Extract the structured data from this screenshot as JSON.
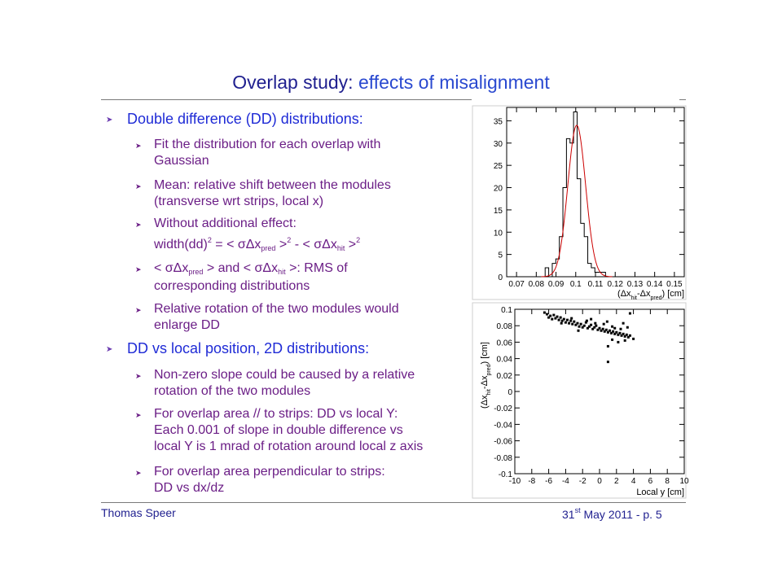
{
  "slide": {
    "title_part1": "Overlap study: ",
    "title_part2": "effects of misalignment",
    "footer_author": "Thomas Speer",
    "footer_date_day": "31",
    "footer_date_sup": "st",
    "footer_date_rest": " May 2011 - p. 5"
  },
  "bullets": {
    "b1": "Double difference (DD) distributions:",
    "b1_1_l1": "Fit the distribution for each overlap with",
    "b1_1_l2": "Gaussian",
    "b1_2_l1": "Mean: relative shift between the modules",
    "b1_2_l2": "(transverse wrt strips, local x)",
    "b1_3_l1": "Without additional effect:",
    "b1_3_l2_a": "width(dd)",
    "b1_3_l2_sup1": "2",
    "b1_3_l2_b": " = < σΔx",
    "b1_3_l2_sub1": "pred",
    "b1_3_l2_c": " >",
    "b1_3_l2_sup2": "2",
    "b1_3_l2_d": " - < σΔx",
    "b1_3_l2_sub2": "hit",
    "b1_3_l2_e": " >",
    "b1_3_l2_sup3": "2",
    "b1_4_a": "< σΔx",
    "b1_4_sub1": "pred",
    "b1_4_b": " > and < σΔx",
    "b1_4_sub2": "hit",
    "b1_4_c": " >: RMS of",
    "b1_4_l2": "corresponding distributions",
    "b1_5_l1": "Relative rotation of the two modules would",
    "b1_5_l2": "enlarge DD",
    "b2": "DD vs local position, 2D distributions:",
    "b2_1_l1": "Non-zero slope could be caused by a relative",
    "b2_1_l2": "rotation of the two modules",
    "b2_2_l1": "For overlap area // to strips:  DD vs local Y:",
    "b2_2_l2": "Each 0.001 of slope in double difference vs",
    "b2_2_l3": "local Y is 1 mrad of rotation around local z axis",
    "b2_3_l1": "For overlap area perpendicular to strips:",
    "b2_3_l2": "DD vs dx/dz"
  },
  "chart_data": [
    {
      "type": "bar",
      "subtype": "histogram with gaussian fit",
      "xlabel": "(Δx_hit-Δx_pred) [cm]",
      "xlim": [
        0.065,
        0.155
      ],
      "ylim": [
        0,
        38
      ],
      "x_tick_labels": [
        "0.07",
        "0.08",
        "0.09",
        "0.1",
        "0.11",
        "0.12",
        "0.13",
        "0.14",
        "0.15"
      ],
      "y_tick_labels": [
        "0",
        "5",
        "10",
        "15",
        "20",
        "25",
        "30",
        "35"
      ],
      "bin_width": 0.0018,
      "bin_starts": [
        0.0845,
        0.0863,
        0.0881,
        0.0899,
        0.0917,
        0.0935,
        0.0953,
        0.0971,
        0.0989,
        0.1007,
        0.1025,
        0.1043,
        0.1061,
        0.1079,
        0.1097,
        0.1115,
        0.1133
      ],
      "counts": [
        2,
        0,
        3,
        4,
        9,
        20,
        31,
        30,
        37,
        22,
        12,
        9,
        3,
        2,
        1,
        1,
        1
      ],
      "fit": {
        "mean": 0.1005,
        "sigma": 0.0045,
        "amplitude": 34
      },
      "colors": {
        "histogram": "#000000",
        "fit": "#cc0000"
      }
    },
    {
      "type": "scatter",
      "xlabel": "Local y [cm]",
      "ylabel": "(Δx_hit-Δx_pred) [cm]",
      "xlim": [
        -10,
        10
      ],
      "ylim": [
        -0.1,
        0.1
      ],
      "x_tick_labels": [
        "-10",
        "-8",
        "-6",
        "-4",
        "-2",
        "0",
        "2",
        "4",
        "6",
        "8",
        "10"
      ],
      "y_tick_labels": [
        "-0.1",
        "-0.08",
        "-0.06",
        "-0.04",
        "-0.02",
        "0",
        "0.02",
        "0.04",
        "0.06",
        "0.08",
        "0.1"
      ],
      "points": [
        [
          -6.2,
          0.094
        ],
        [
          -6.0,
          0.09
        ],
        [
          -5.8,
          0.092
        ],
        [
          -5.6,
          0.088
        ],
        [
          -5.4,
          0.093
        ],
        [
          -5.2,
          0.089
        ],
        [
          -5.0,
          0.091
        ],
        [
          -4.8,
          0.087
        ],
        [
          -4.6,
          0.09
        ],
        [
          -4.4,
          0.086
        ],
        [
          -4.2,
          0.088
        ],
        [
          -4.0,
          0.084
        ],
        [
          -3.8,
          0.087
        ],
        [
          -3.6,
          0.083
        ],
        [
          -3.4,
          0.086
        ],
        [
          -3.2,
          0.082
        ],
        [
          -3.0,
          0.085
        ],
        [
          -2.8,
          0.081
        ],
        [
          -2.6,
          0.083
        ],
        [
          -2.4,
          0.079
        ],
        [
          -2.2,
          0.082
        ],
        [
          -2.0,
          0.078
        ],
        [
          -1.8,
          0.08
        ],
        [
          -1.6,
          0.084
        ],
        [
          -1.4,
          0.077
        ],
        [
          -1.2,
          0.079
        ],
        [
          -1.0,
          0.081
        ],
        [
          -0.8,
          0.076
        ],
        [
          -0.6,
          0.078
        ],
        [
          -0.4,
          0.08
        ],
        [
          -0.2,
          0.075
        ],
        [
          0.0,
          0.077
        ],
        [
          0.2,
          0.074
        ],
        [
          0.4,
          0.076
        ],
        [
          0.6,
          0.073
        ],
        [
          0.8,
          0.075
        ],
        [
          1.0,
          0.072
        ],
        [
          1.2,
          0.074
        ],
        [
          1.4,
          0.071
        ],
        [
          1.6,
          0.073
        ],
        [
          1.8,
          0.07
        ],
        [
          2.0,
          0.072
        ],
        [
          2.2,
          0.069
        ],
        [
          2.4,
          0.071
        ],
        [
          2.6,
          0.068
        ],
        [
          2.8,
          0.07
        ],
        [
          3.0,
          0.067
        ],
        [
          3.2,
          0.069
        ],
        [
          3.4,
          0.066
        ],
        [
          3.6,
          0.068
        ],
        [
          -3.3,
          0.089
        ],
        [
          -1.5,
          0.086
        ],
        [
          0.5,
          0.082
        ],
        [
          1.5,
          0.079
        ],
        [
          2.5,
          0.076
        ],
        [
          -4.5,
          0.083
        ],
        [
          -2.5,
          0.074
        ],
        [
          0.9,
          0.085
        ],
        [
          3.0,
          0.062
        ],
        [
          4.0,
          0.064
        ],
        [
          1.5,
          0.063
        ],
        [
          2.2,
          0.06
        ],
        [
          1.0,
          0.055
        ],
        [
          -0.5,
          0.083
        ],
        [
          -1.0,
          0.088
        ],
        [
          3.3,
          0.078
        ],
        [
          2.8,
          0.083
        ],
        [
          1.8,
          0.077
        ],
        [
          3.6,
          0.095
        ],
        [
          1.0,
          0.036
        ],
        [
          -6.5,
          0.096
        ]
      ]
    }
  ]
}
